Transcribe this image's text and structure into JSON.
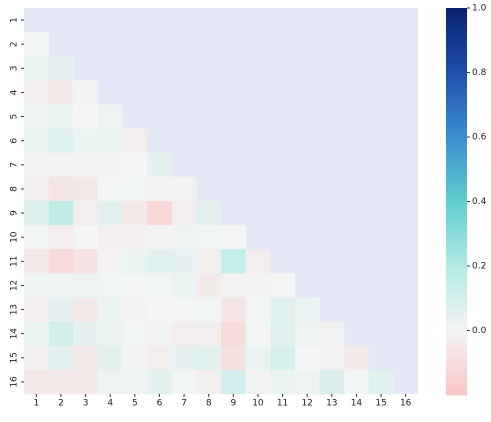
{
  "chart_data": {
    "type": "heatmap",
    "x_categories": [
      "1",
      "2",
      "3",
      "4",
      "5",
      "6",
      "7",
      "8",
      "9",
      "10",
      "11",
      "12",
      "13",
      "14",
      "15",
      "16"
    ],
    "y_categories": [
      "1",
      "2",
      "3",
      "4",
      "5",
      "6",
      "7",
      "8",
      "9",
      "10",
      "11",
      "12",
      "13",
      "14",
      "15",
      "16"
    ],
    "matrix": [
      [
        null,
        null,
        null,
        null,
        null,
        null,
        null,
        null,
        null,
        null,
        null,
        null,
        null,
        null,
        null,
        null
      ],
      [
        0.01,
        null,
        null,
        null,
        null,
        null,
        null,
        null,
        null,
        null,
        null,
        null,
        null,
        null,
        null,
        null
      ],
      [
        0.03,
        0.04,
        null,
        null,
        null,
        null,
        null,
        null,
        null,
        null,
        null,
        null,
        null,
        null,
        null,
        null
      ],
      [
        -0.03,
        -0.04,
        -0.01,
        null,
        null,
        null,
        null,
        null,
        null,
        null,
        null,
        null,
        null,
        null,
        null,
        null
      ],
      [
        0.02,
        0.03,
        0.0,
        0.02,
        null,
        null,
        null,
        null,
        null,
        null,
        null,
        null,
        null,
        null,
        null,
        null
      ],
      [
        0.03,
        0.06,
        0.03,
        0.03,
        -0.03,
        null,
        null,
        null,
        null,
        null,
        null,
        null,
        null,
        null,
        null,
        null
      ],
      [
        -0.01,
        -0.01,
        -0.01,
        -0.01,
        0.0,
        0.04,
        null,
        null,
        null,
        null,
        null,
        null,
        null,
        null,
        null,
        null
      ],
      [
        -0.02,
        -0.06,
        -0.05,
        0.0,
        0.01,
        -0.01,
        -0.01,
        null,
        null,
        null,
        null,
        null,
        null,
        null,
        null,
        null
      ],
      [
        0.07,
        0.17,
        -0.03,
        0.06,
        -0.04,
        -0.12,
        -0.03,
        0.05,
        null,
        null,
        null,
        null,
        null,
        null,
        null,
        null
      ],
      [
        0.01,
        -0.03,
        0.0,
        -0.02,
        -0.02,
        -0.01,
        0.02,
        0.01,
        0.0,
        null,
        null,
        null,
        null,
        null,
        null,
        null
      ],
      [
        -0.04,
        -0.11,
        -0.07,
        -0.01,
        0.03,
        0.05,
        0.04,
        -0.02,
        0.15,
        -0.03,
        null,
        null,
        null,
        null,
        null,
        null
      ],
      [
        0.02,
        0.02,
        0.02,
        0.01,
        0.0,
        0.01,
        0.03,
        -0.04,
        -0.01,
        -0.01,
        0.0,
        null,
        null,
        null,
        null,
        null
      ],
      [
        -0.03,
        0.04,
        -0.04,
        0.03,
        -0.01,
        0.0,
        0.0,
        0.01,
        -0.06,
        0.01,
        0.06,
        0.03,
        null,
        null,
        null,
        null
      ],
      [
        0.03,
        0.1,
        0.04,
        0.03,
        0.01,
        -0.01,
        -0.03,
        -0.02,
        -0.1,
        0.0,
        0.06,
        0.02,
        -0.01,
        null,
        null,
        null
      ],
      [
        -0.02,
        0.05,
        -0.04,
        0.05,
        -0.01,
        -0.03,
        0.04,
        0.05,
        -0.08,
        0.03,
        0.09,
        0.0,
        -0.01,
        -0.04,
        null,
        null
      ],
      [
        -0.05,
        -0.05,
        -0.05,
        0.02,
        0.02,
        0.05,
        0.01,
        -0.02,
        0.1,
        -0.01,
        0.03,
        0.02,
        0.08,
        0.01,
        0.06,
        null
      ]
    ],
    "colorscale": [
      "#fbc4c4",
      "#f3f4f4",
      "#b3eae5",
      "#5fcfd0",
      "#3b8fd0",
      "#1f4fb0",
      "#08226e"
    ],
    "background": "#e5e8f6",
    "clim": [
      -0.2,
      1.0
    ],
    "cticks": [
      {
        "value": 0,
        "label": "0.0"
      },
      {
        "value": 0.2,
        "label": "0.2"
      },
      {
        "value": 0.4,
        "label": "0.4"
      },
      {
        "value": 0.6,
        "label": "0.6"
      },
      {
        "value": 0.8,
        "label": "0.8"
      },
      {
        "value": 1.0,
        "label": "1.0"
      }
    ]
  }
}
